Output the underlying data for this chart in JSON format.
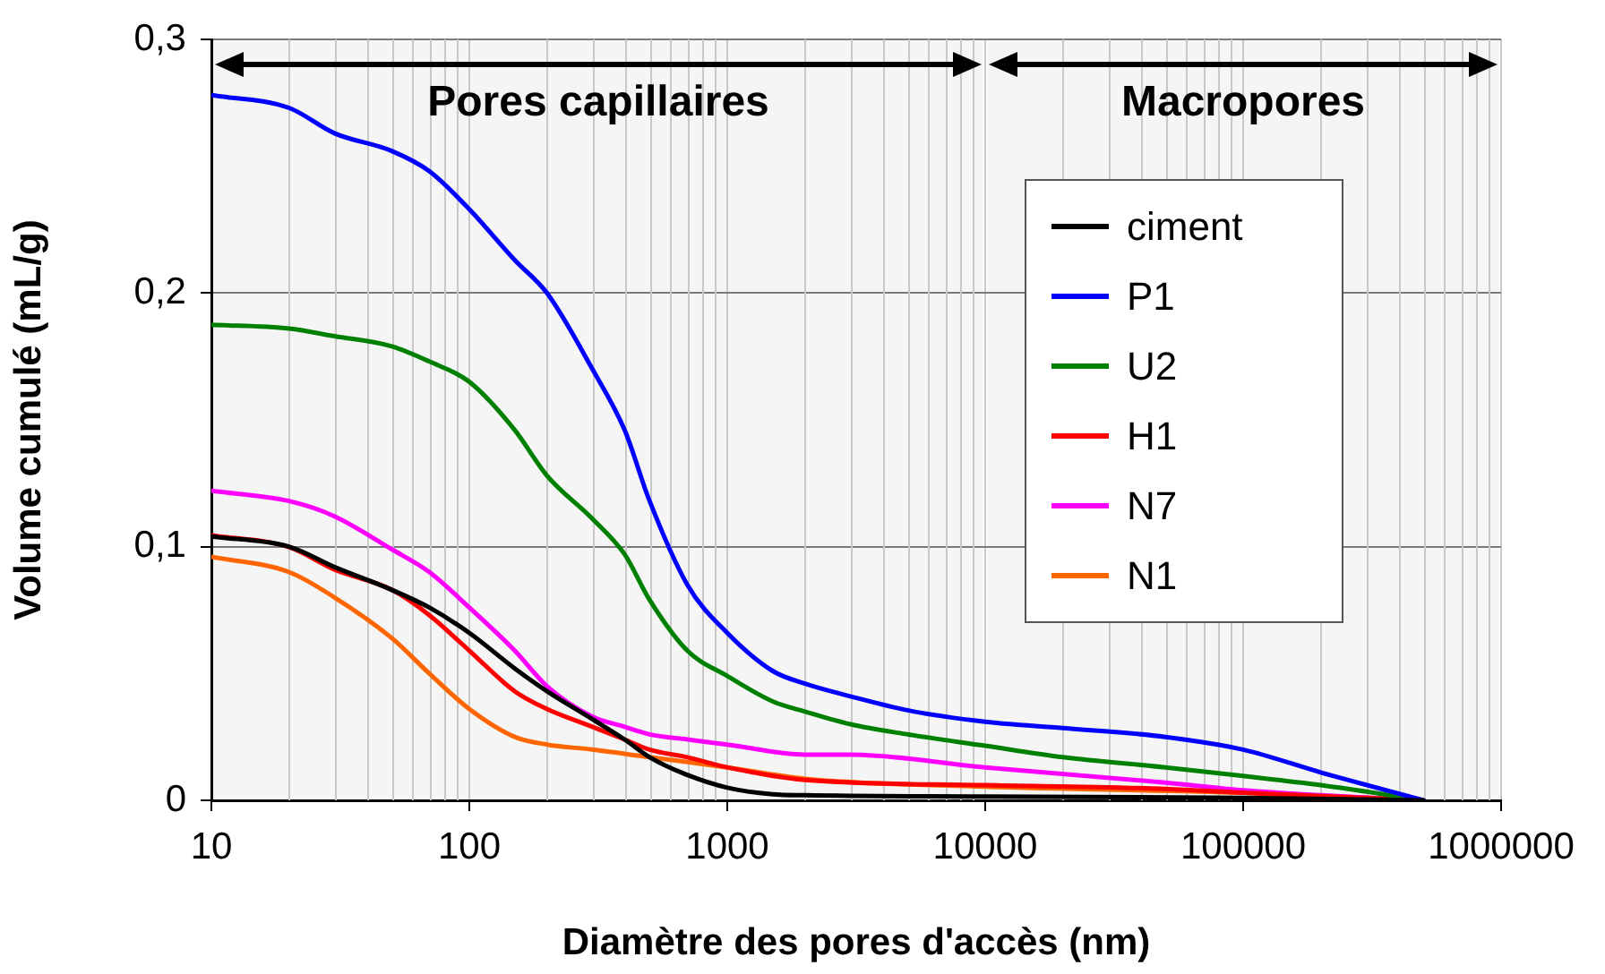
{
  "chart_data": {
    "type": "line",
    "xlabel": "Diamètre des pores d'accès (nm)",
    "ylabel": "Volume cumulé (mL/g)",
    "log": "x",
    "grid": true,
    "legend": "right",
    "marker": "none",
    "line_style": "solid",
    "xlim": [
      10,
      1000000
    ],
    "xticks": [
      10,
      100,
      1000,
      10000,
      100000,
      1000000
    ],
    "ylim": [
      0,
      0.3
    ],
    "yticks": [
      0,
      {
        "value": 0.1,
        "label": "0,1"
      },
      {
        "value": 0.2,
        "label": "0,2"
      },
      {
        "value": 0.3,
        "label": "0,3"
      }
    ],
    "bands": [
      {
        "axis": "x",
        "from": 10,
        "to": 10000,
        "label": "Pores capillaires",
        "color": "#f5f5f5"
      },
      {
        "axis": "x",
        "from": 10000,
        "to": 1000000,
        "label": "Macropores",
        "color": "#f5f5f5"
      }
    ],
    "series": [
      {
        "name": "ciment",
        "color": "#000000",
        "x": [
          10,
          20,
          30,
          50,
          70,
          100,
          150,
          200,
          300,
          400,
          500,
          700,
          1000,
          1500,
          2000,
          10000,
          100000,
          500000
        ],
        "values": [
          0.104,
          0.1,
          0.092,
          0.083,
          0.076,
          0.066,
          0.052,
          0.043,
          0.032,
          0.024,
          0.017,
          0.01,
          0.005,
          0.0024,
          0.002,
          0.0015,
          0.001,
          0
        ]
      },
      {
        "name": "P1",
        "color": "#0000ff",
        "x": [
          10,
          20,
          30,
          50,
          70,
          100,
          150,
          200,
          300,
          400,
          500,
          700,
          1000,
          1500,
          2000,
          3000,
          5000,
          10000,
          20000,
          50000,
          100000,
          200000,
          500000
        ],
        "values": [
          0.278,
          0.273,
          0.263,
          0.256,
          0.248,
          0.233,
          0.213,
          0.2,
          0.17,
          0.146,
          0.118,
          0.085,
          0.066,
          0.051,
          0.046,
          0.041,
          0.0355,
          0.031,
          0.0285,
          0.025,
          0.02,
          0.011,
          0
        ]
      },
      {
        "name": "U2",
        "color": "#008000",
        "x": [
          10,
          20,
          30,
          50,
          70,
          100,
          150,
          200,
          300,
          400,
          500,
          700,
          1000,
          1500,
          2000,
          3000,
          5000,
          10000,
          20000,
          50000,
          100000,
          200000,
          500000
        ],
        "values": [
          0.1875,
          0.186,
          0.183,
          0.179,
          0.173,
          0.165,
          0.146,
          0.128,
          0.111,
          0.097,
          0.079,
          0.059,
          0.049,
          0.039,
          0.035,
          0.03,
          0.026,
          0.0215,
          0.017,
          0.013,
          0.0096,
          0.006,
          0
        ]
      },
      {
        "name": "H1",
        "color": "#ff0000",
        "x": [
          10,
          20,
          30,
          50,
          70,
          100,
          150,
          200,
          300,
          400,
          500,
          700,
          1000,
          2000,
          10000,
          50000,
          100000,
          500000
        ],
        "values": [
          0.1045,
          0.0998,
          0.091,
          0.083,
          0.073,
          0.059,
          0.043,
          0.036,
          0.029,
          0.024,
          0.02,
          0.017,
          0.013,
          0.008,
          0.006,
          0.0045,
          0.003,
          0
        ]
      },
      {
        "name": "N7",
        "color": "#ff00ff",
        "x": [
          10,
          20,
          30,
          50,
          70,
          100,
          150,
          200,
          300,
          400,
          500,
          700,
          1000,
          2000,
          3000,
          10000,
          50000,
          100000,
          200000,
          500000
        ],
        "values": [
          0.122,
          0.118,
          0.112,
          0.099,
          0.09,
          0.076,
          0.059,
          0.045,
          0.033,
          0.029,
          0.026,
          0.024,
          0.022,
          0.018,
          0.018,
          0.013,
          0.007,
          0.004,
          0.002,
          0
        ]
      },
      {
        "name": "N1",
        "color": "#ff6600",
        "x": [
          10,
          20,
          30,
          50,
          70,
          100,
          150,
          200,
          300,
          500,
          1000,
          2000,
          10000,
          100000,
          500000
        ],
        "values": [
          0.096,
          0.09,
          0.08,
          0.064,
          0.05,
          0.036,
          0.025,
          0.022,
          0.02,
          0.017,
          0.013,
          0.0085,
          0.0054,
          0.003,
          0
        ]
      }
    ]
  }
}
